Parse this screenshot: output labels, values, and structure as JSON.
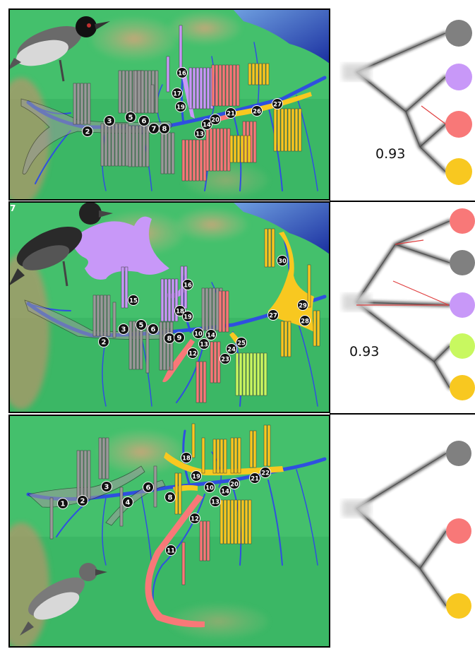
{
  "figure": {
    "panels": [
      {
        "id": "top",
        "corner_label": "",
        "tree_support": "0.93",
        "tip_colors": [
          "#808080",
          "#c898f8",
          "#f87878",
          "#f8c820"
        ],
        "site_numbers": [
          "2",
          "3",
          "5",
          "6",
          "7",
          "8",
          "13",
          "14",
          "16",
          "17",
          "19",
          "20",
          "21",
          "26",
          "27"
        ]
      },
      {
        "id": "middle",
        "corner_label": "7",
        "tree_support": "0.93",
        "tip_colors": [
          "#f87878",
          "#808080",
          "#c898f8",
          "#c8f860",
          "#f8c820"
        ],
        "site_numbers": [
          "2",
          "3",
          "5",
          "6",
          "8",
          "9",
          "10",
          "12",
          "13",
          "14",
          "15",
          "16",
          "18",
          "19",
          "23",
          "24",
          "25",
          "27",
          "28",
          "29",
          "30"
        ]
      },
      {
        "id": "bottom",
        "corner_label": "",
        "tree_support": "",
        "tip_colors": [
          "#808080",
          "#f87878",
          "#f8c820"
        ],
        "site_numbers": [
          "1",
          "2",
          "3",
          "4",
          "6",
          "8",
          "10",
          "11",
          "12",
          "13",
          "14",
          "18",
          "19",
          "20",
          "21",
          "22"
        ]
      }
    ],
    "palette": {
      "gray": "#9a9a9a",
      "purple": "#c898f8",
      "red": "#f87878",
      "yellow": "#f8c820",
      "lime": "#c8f860",
      "river": "#2f4fe0",
      "land": "#3fbf6a",
      "ocean": "#2040b0",
      "highland": "#b7956a"
    }
  }
}
